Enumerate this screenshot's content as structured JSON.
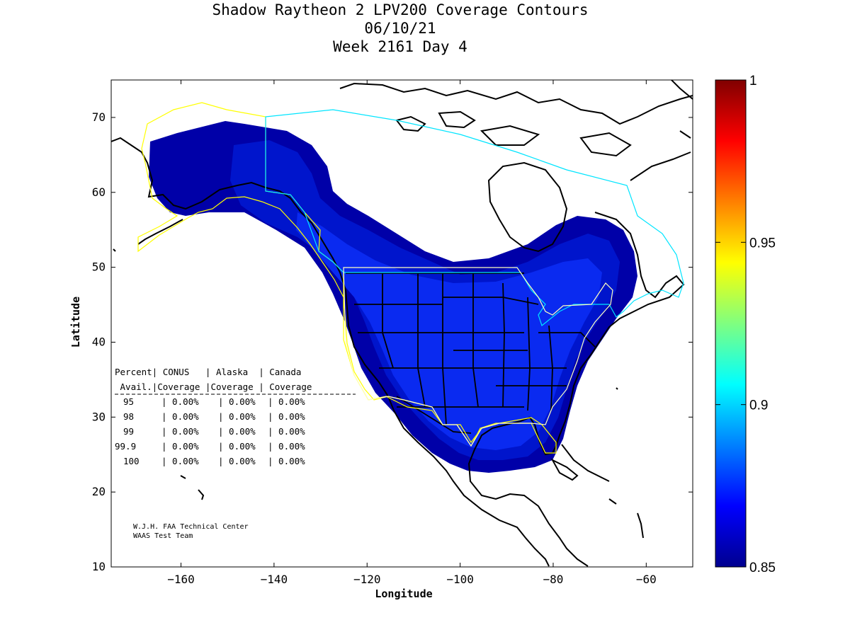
{
  "title": {
    "line1": "Shadow Raytheon 2 LPV200 Coverage Contours",
    "line2": "06/10/21",
    "line3": "Week 2161 Day 4"
  },
  "axes": {
    "xlabel": "Longitude",
    "ylabel": "Latitude",
    "xlim": [
      -175,
      -50
    ],
    "ylim": [
      10,
      75
    ],
    "xticks": [
      -160,
      -140,
      -120,
      -100,
      -80,
      -60
    ],
    "yticks": [
      10,
      20,
      30,
      40,
      50,
      60,
      70
    ]
  },
  "colorbar": {
    "range": [
      0.85,
      1
    ],
    "ticks": [
      "1",
      "0.95",
      "0.9",
      "0.85"
    ],
    "tick_values": [
      1,
      0.95,
      0.9,
      0.85
    ]
  },
  "table": {
    "header1": "Percent| CONUS   | Alaska  | Canada",
    "header2": " Avail.|Coverage |Coverage | Coverage",
    "rows": [
      {
        "avail": "95",
        "conus": "0.00%",
        "alaska": "0.00%",
        "canada": "0.00%"
      },
      {
        "avail": "98",
        "conus": "0.00%",
        "alaska": "0.00%",
        "canada": "0.00%"
      },
      {
        "avail": "99",
        "conus": "0.00%",
        "alaska": "0.00%",
        "canada": "0.00%"
      },
      {
        "avail": "99.9",
        "conus": "0.00%",
        "alaska": "0.00%",
        "canada": "0.00%"
      },
      {
        "avail": "100",
        "conus": "0.00%",
        "alaska": "0.00%",
        "canada": "0.00%"
      }
    ]
  },
  "credits": {
    "line1": "W.J.H. FAA Technical Center",
    "line2": "WAAS Test Team"
  },
  "colors": {
    "coverage_dark": "#0000a8",
    "coverage_mid": "#0018d8",
    "coverage_bright": "#0a2af5",
    "alaska_boundary": "#ffff00",
    "canada_boundary": "#00e5ff",
    "conus_boundary": "#ffffc0"
  }
}
